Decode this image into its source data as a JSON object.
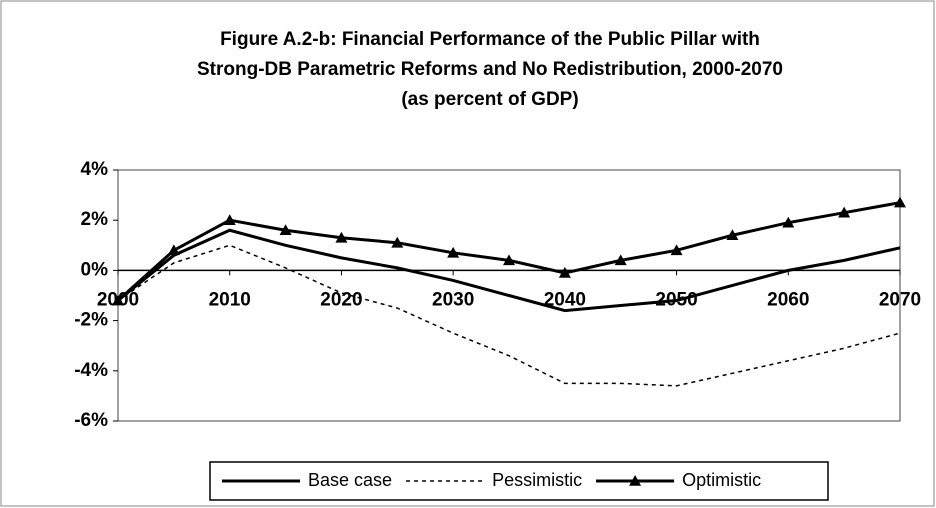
{
  "chart_data": {
    "type": "line",
    "title_lines": [
      "Figure A.2-b: Financial Performance of the Public Pillar with",
      "Strong-DB Parametric Reforms and No Redistribution, 2000-2070",
      "(as percent of GDP)"
    ],
    "x": [
      2000,
      2005,
      2010,
      2015,
      2020,
      2025,
      2030,
      2035,
      2040,
      2045,
      2050,
      2055,
      2060,
      2065,
      2070
    ],
    "series": [
      {
        "name": "Base case",
        "color": "#000000",
        "style": "solid",
        "marker": "none",
        "values": [
          -1.2,
          0.6,
          1.6,
          1.0,
          0.5,
          0.1,
          -0.4,
          -1.0,
          -1.6,
          -1.4,
          -1.2,
          -0.6,
          0.0,
          0.4,
          0.9
        ]
      },
      {
        "name": "Pessimistic",
        "color": "#000000",
        "style": "dotted",
        "marker": "none",
        "values": [
          -1.2,
          0.3,
          1.0,
          0.1,
          -0.9,
          -1.5,
          -2.5,
          -3.4,
          -4.5,
          -4.5,
          -4.6,
          -4.1,
          -3.6,
          -3.1,
          -2.5
        ]
      },
      {
        "name": "Optimistic",
        "color": "#000000",
        "style": "solid",
        "marker": "triangle",
        "values": [
          -1.2,
          0.8,
          2.0,
          1.6,
          1.3,
          1.1,
          0.7,
          0.4,
          -0.1,
          0.4,
          0.8,
          1.4,
          1.9,
          2.3,
          2.7
        ]
      }
    ],
    "xlim": [
      2000,
      2070
    ],
    "xticks": [
      2000,
      2010,
      2020,
      2030,
      2040,
      2050,
      2060,
      2070
    ],
    "ylim": [
      -6,
      4
    ],
    "yticks": [
      {
        "value": 4,
        "label": "4%"
      },
      {
        "value": 2,
        "label": "2%"
      },
      {
        "value": 0,
        "label": "0%"
      },
      {
        "value": -2,
        "label": "-2%"
      },
      {
        "value": -4,
        "label": "-4%"
      },
      {
        "value": -6,
        "label": "-6%"
      }
    ],
    "grid": false,
    "legend": "bottom"
  }
}
